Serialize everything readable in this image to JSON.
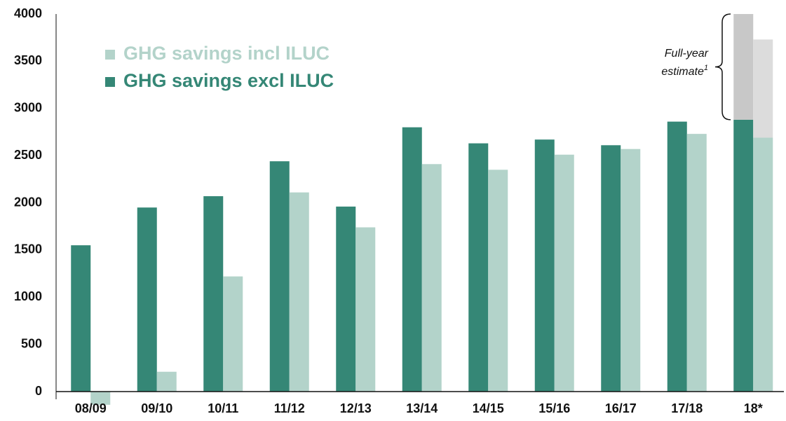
{
  "chart_data": {
    "type": "bar",
    "categories": [
      "08/09",
      "09/10",
      "10/11",
      "11/12",
      "12/13",
      "13/14",
      "14/15",
      "15/16",
      "16/17",
      "17/18",
      "18*"
    ],
    "series": [
      {
        "name": "GHG savings incl ILUC",
        "color": "#b3d3ca",
        "values": [
          -140,
          210,
          1220,
          2110,
          1740,
          2410,
          2350,
          2510,
          2570,
          2730,
          2690
        ]
      },
      {
        "name": "GHG savings excl ILUC",
        "color": "#358776",
        "values": [
          1550,
          1950,
          2070,
          2440,
          1960,
          2800,
          2630,
          2670,
          2610,
          2860,
          2880
        ]
      }
    ],
    "estimate": {
      "text": "Full-year",
      "text2": "estimate",
      "footnote": "1",
      "values": [
        1040,
        1120
      ],
      "colors": [
        "#dcdcdc",
        "#c8c8c8"
      ]
    },
    "ylim": [
      0,
      4000
    ],
    "yticks": [
      0,
      500,
      1000,
      1500,
      2000,
      2500,
      3000,
      3500,
      4000
    ]
  }
}
